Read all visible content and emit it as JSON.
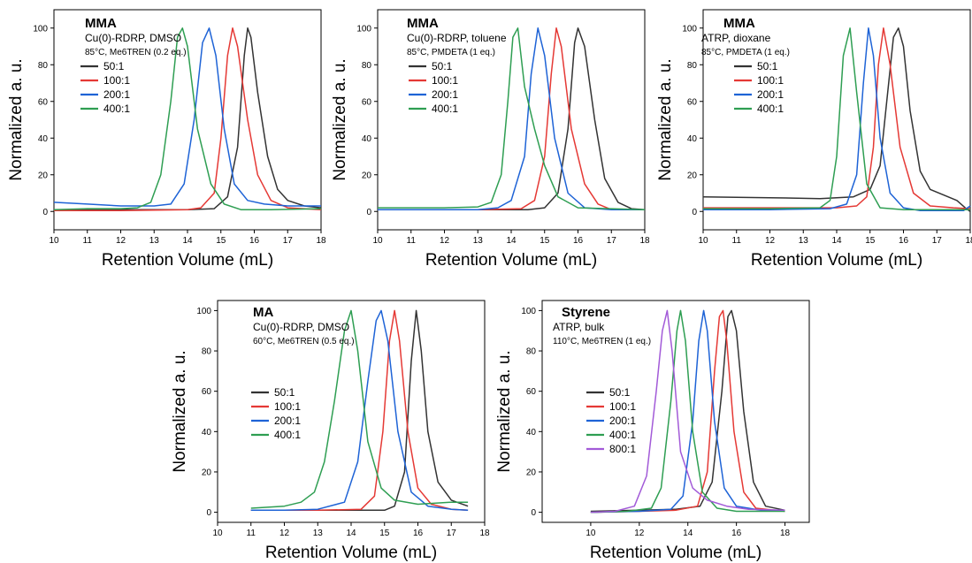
{
  "chart_data": [
    {
      "type": "line",
      "title": "MMA",
      "conditions": [
        "Cu(0)-RDRP, DMSO",
        "85°C, Me6TREN (0.2 eq.)"
      ],
      "xlabel": "Retention Volume (mL)",
      "ylabel": "Normalized a. u.",
      "xlim": [
        10,
        18
      ],
      "ylim": [
        -10,
        110
      ],
      "xticks": [
        "10",
        "11",
        "12",
        "13",
        "14",
        "15",
        "16",
        "17",
        "18"
      ],
      "yticks": [
        "0",
        "20",
        "40",
        "60",
        "80",
        "100"
      ],
      "legend": [
        "50:1",
        "100:1",
        "200:1",
        "400:1"
      ],
      "colors": [
        "#333333",
        "#e53935",
        "#1e63d6",
        "#2e9e52"
      ],
      "series": [
        {
          "name": "50:1",
          "x": [
            10,
            12,
            14,
            14.8,
            15.2,
            15.5,
            15.7,
            15.8,
            15.9,
            16.1,
            16.4,
            16.7,
            17.0,
            17.5,
            18
          ],
          "y": [
            1,
            1,
            1,
            1.5,
            8,
            35,
            85,
            100,
            95,
            65,
            30,
            12,
            6,
            3,
            2
          ]
        },
        {
          "name": "100:1",
          "x": [
            10,
            12,
            14,
            14.4,
            14.8,
            15.0,
            15.2,
            15.35,
            15.5,
            15.8,
            16.1,
            16.5,
            17.0,
            18
          ],
          "y": [
            0.5,
            0.5,
            1,
            2,
            10,
            40,
            85,
            100,
            90,
            50,
            20,
            6,
            2,
            1
          ]
        },
        {
          "name": "200:1",
          "x": [
            10,
            11,
            12,
            13,
            13.5,
            13.9,
            14.2,
            14.45,
            14.65,
            14.85,
            15.1,
            15.4,
            15.8,
            16.3,
            17,
            18
          ],
          "y": [
            5,
            4,
            3,
            3,
            4,
            15,
            50,
            92,
            100,
            85,
            45,
            15,
            6,
            4,
            3,
            3
          ]
        },
        {
          "name": "400:1",
          "x": [
            10,
            11,
            12,
            12.5,
            12.9,
            13.2,
            13.5,
            13.7,
            13.85,
            14.0,
            14.3,
            14.7,
            15.1,
            15.6,
            16.5,
            18
          ],
          "y": [
            1,
            1.5,
            1.5,
            2,
            5,
            20,
            60,
            95,
            100,
            90,
            45,
            15,
            4,
            1,
            1,
            1.5
          ]
        }
      ]
    },
    {
      "type": "line",
      "title": "MMA",
      "conditions": [
        "Cu(0)-RDRP, toluene",
        "85°C, PMDETA (1 eq.)"
      ],
      "xlabel": "Retention Volume (mL)",
      "ylabel": "Normalized a. u.",
      "xlim": [
        10,
        18
      ],
      "ylim": [
        -10,
        110
      ],
      "xticks": [
        "10",
        "11",
        "12",
        "13",
        "14",
        "15",
        "16",
        "17",
        "18"
      ],
      "yticks": [
        "0",
        "20",
        "40",
        "60",
        "80",
        "100"
      ],
      "legend": [
        "50:1",
        "100:1",
        "200:1",
        "400:1"
      ],
      "colors": [
        "#333333",
        "#e53935",
        "#1e63d6",
        "#2e9e52"
      ],
      "series": [
        {
          "name": "50:1",
          "x": [
            10,
            13,
            14.5,
            15.0,
            15.4,
            15.7,
            15.9,
            16.0,
            16.2,
            16.5,
            16.8,
            17.2,
            17.6,
            18
          ],
          "y": [
            1,
            1,
            1,
            2,
            10,
            45,
            92,
            100,
            90,
            50,
            18,
            5,
            1.5,
            1
          ]
        },
        {
          "name": "100:1",
          "x": [
            10,
            13,
            14.3,
            14.7,
            15.0,
            15.2,
            15.35,
            15.5,
            15.8,
            16.2,
            16.6,
            17,
            18
          ],
          "y": [
            1,
            1,
            1.5,
            6,
            30,
            75,
            100,
            90,
            45,
            15,
            4,
            1,
            1
          ]
        },
        {
          "name": "200:1",
          "x": [
            10,
            13,
            13.6,
            14.0,
            14.4,
            14.6,
            14.8,
            15.0,
            15.3,
            15.7,
            16.2,
            17,
            18
          ],
          "y": [
            1,
            1,
            2,
            6,
            30,
            75,
            100,
            85,
            40,
            10,
            2,
            1,
            1
          ]
        },
        {
          "name": "400:1",
          "x": [
            10,
            12,
            13,
            13.4,
            13.7,
            13.9,
            14.05,
            14.2,
            14.4,
            14.7,
            15.0,
            15.4,
            16,
            18
          ],
          "y": [
            2,
            2,
            2.5,
            5,
            20,
            60,
            95,
            100,
            68,
            45,
            25,
            8,
            2,
            1
          ]
        }
      ]
    },
    {
      "type": "line",
      "title": "MMA",
      "conditions": [
        "ATRP, dioxane",
        "85°C, PMDETA (1 eq.)"
      ],
      "xlabel": "Retention Volume (mL)",
      "ylabel": "Normalized a. u.",
      "xlim": [
        10,
        18
      ],
      "ylim": [
        -10,
        110
      ],
      "xticks": [
        "10",
        "11",
        "12",
        "13",
        "14",
        "15",
        "16",
        "17",
        "18"
      ],
      "yticks": [
        "0",
        "20",
        "40",
        "60",
        "80",
        "100"
      ],
      "legend": [
        "50:1",
        "100:1",
        "200:1",
        "400:1"
      ],
      "colors": [
        "#333333",
        "#e53935",
        "#1e63d6",
        "#2e9e52"
      ],
      "series": [
        {
          "name": "50:1",
          "x": [
            10,
            12,
            13.5,
            14.5,
            15.0,
            15.3,
            15.5,
            15.7,
            15.85,
            16.0,
            16.2,
            16.5,
            16.8,
            17.2,
            17.6,
            17.85,
            18
          ],
          "y": [
            8,
            7.5,
            7,
            8,
            12,
            25,
            60,
            95,
            100,
            90,
            55,
            22,
            12,
            9,
            6,
            2,
            0
          ]
        },
        {
          "name": "100:1",
          "x": [
            10,
            12,
            14,
            14.6,
            14.9,
            15.1,
            15.25,
            15.4,
            15.6,
            15.9,
            16.3,
            16.8,
            17.5,
            18
          ],
          "y": [
            2,
            2,
            2,
            3,
            8,
            35,
            80,
            100,
            80,
            35,
            10,
            3,
            2,
            1.5
          ]
        },
        {
          "name": "200:1",
          "x": [
            10,
            12,
            13.8,
            14.3,
            14.6,
            14.8,
            14.95,
            15.1,
            15.3,
            15.6,
            16,
            16.5,
            17,
            17.8,
            18
          ],
          "y": [
            1,
            1,
            1.5,
            4,
            20,
            70,
            100,
            85,
            40,
            10,
            2,
            0.5,
            0.5,
            0.5,
            3
          ]
        },
        {
          "name": "400:1",
          "x": [
            10,
            12,
            13.5,
            13.8,
            14.0,
            14.2,
            14.4,
            14.6,
            14.9,
            15.3,
            16,
            18
          ],
          "y": [
            1.5,
            1.5,
            2,
            6,
            30,
            85,
            100,
            65,
            15,
            2,
            1,
            1
          ]
        }
      ]
    },
    {
      "type": "line",
      "title": "MA",
      "conditions": [
        "Cu(0)-RDRP, DMSO",
        "60°C, Me6TREN (0.5 eq.)"
      ],
      "xlabel": "Retention Volume (mL)",
      "ylabel": "Normalized a. u.",
      "xlim": [
        10,
        18
      ],
      "ylim": [
        -5,
        105
      ],
      "xticks": [
        "10",
        "11",
        "12",
        "13",
        "14",
        "15",
        "16",
        "17",
        "18"
      ],
      "yticks": [
        "0",
        "20",
        "40",
        "60",
        "80",
        "100"
      ],
      "legend": [
        "50:1",
        "100:1",
        "200:1",
        "400:1"
      ],
      "colors": [
        "#333333",
        "#e53935",
        "#1e63d6",
        "#2e9e52"
      ],
      "series": [
        {
          "name": "50:1",
          "x": [
            11,
            13,
            15.0,
            15.3,
            15.6,
            15.8,
            15.95,
            16.1,
            16.3,
            16.6,
            17.0,
            17.5
          ],
          "y": [
            1,
            1,
            1,
            3,
            20,
            75,
            100,
            80,
            40,
            15,
            6,
            3
          ]
        },
        {
          "name": "100:1",
          "x": [
            11,
            13,
            14.3,
            14.7,
            14.95,
            15.15,
            15.3,
            15.45,
            15.7,
            16.0,
            16.4,
            17.0,
            17.5
          ],
          "y": [
            1,
            1,
            1.5,
            8,
            40,
            85,
            100,
            85,
            40,
            12,
            4,
            1.5,
            1
          ]
        },
        {
          "name": "200:1",
          "x": [
            11,
            12,
            13,
            13.8,
            14.2,
            14.5,
            14.75,
            14.9,
            15.1,
            15.4,
            15.8,
            16.3,
            17,
            17.5
          ],
          "y": [
            1,
            1,
            1.5,
            5,
            25,
            65,
            95,
            100,
            85,
            40,
            10,
            3,
            1.5,
            1
          ]
        },
        {
          "name": "400:1",
          "x": [
            11,
            12,
            12.5,
            12.9,
            13.2,
            13.5,
            13.8,
            14.0,
            14.2,
            14.5,
            14.9,
            15.3,
            16,
            17,
            17.5
          ],
          "y": [
            2,
            3,
            5,
            10,
            25,
            55,
            90,
            100,
            80,
            35,
            12,
            6,
            4,
            5,
            5
          ]
        }
      ]
    },
    {
      "type": "line",
      "title": "Styrene",
      "conditions": [
        "ATRP, bulk",
        "110°C, Me6TREN (1 eq.)"
      ],
      "xlabel": "Retention Volume (mL)",
      "ylabel": "Normalized a. u.",
      "xlim": [
        8,
        19
      ],
      "ylim": [
        -5,
        105
      ],
      "xticks": [
        "10",
        "12",
        "14",
        "16",
        "18"
      ],
      "yticks": [
        "0",
        "20",
        "40",
        "60",
        "80",
        "100"
      ],
      "legend": [
        "50:1",
        "100:1",
        "200:1",
        "400:1",
        "800:1"
      ],
      "colors": [
        "#333333",
        "#e53935",
        "#1e63d6",
        "#2e9e52",
        "#a25ad8"
      ],
      "series": [
        {
          "name": "50:1",
          "x": [
            10,
            12,
            13.5,
            14.5,
            15.0,
            15.4,
            15.65,
            15.8,
            16.0,
            16.3,
            16.7,
            17.2,
            18
          ],
          "y": [
            0.5,
            1,
            1.5,
            3,
            15,
            60,
            97,
            100,
            90,
            50,
            15,
            3,
            1
          ]
        },
        {
          "name": "100:1",
          "x": [
            10,
            12,
            13.5,
            14.4,
            14.8,
            15.1,
            15.3,
            15.45,
            15.6,
            15.9,
            16.3,
            16.8,
            18
          ],
          "y": [
            0,
            0.5,
            1,
            3,
            20,
            70,
            97,
            100,
            85,
            40,
            10,
            2,
            0.5
          ]
        },
        {
          "name": "200:1",
          "x": [
            10,
            12,
            13.3,
            13.8,
            14.2,
            14.45,
            14.65,
            14.8,
            15.1,
            15.5,
            16.0,
            17,
            18
          ],
          "y": [
            0,
            0.5,
            1.5,
            8,
            45,
            85,
            100,
            90,
            45,
            12,
            3,
            1,
            1
          ]
        },
        {
          "name": "400:1",
          "x": [
            10,
            11.5,
            12.5,
            12.9,
            13.3,
            13.55,
            13.7,
            13.9,
            14.2,
            14.6,
            15.2,
            16,
            18
          ],
          "y": [
            0,
            0.5,
            2,
            12,
            55,
            90,
            100,
            85,
            40,
            10,
            2,
            0.5,
            0.5
          ]
        },
        {
          "name": "800:1",
          "x": [
            10,
            11,
            11.8,
            12.3,
            12.7,
            12.95,
            13.15,
            13.35,
            13.7,
            14.2,
            14.8,
            15.6,
            16.5,
            18
          ],
          "y": [
            0,
            0.5,
            3,
            18,
            60,
            90,
            100,
            80,
            30,
            12,
            6,
            3,
            1.5,
            1
          ]
        }
      ]
    }
  ]
}
